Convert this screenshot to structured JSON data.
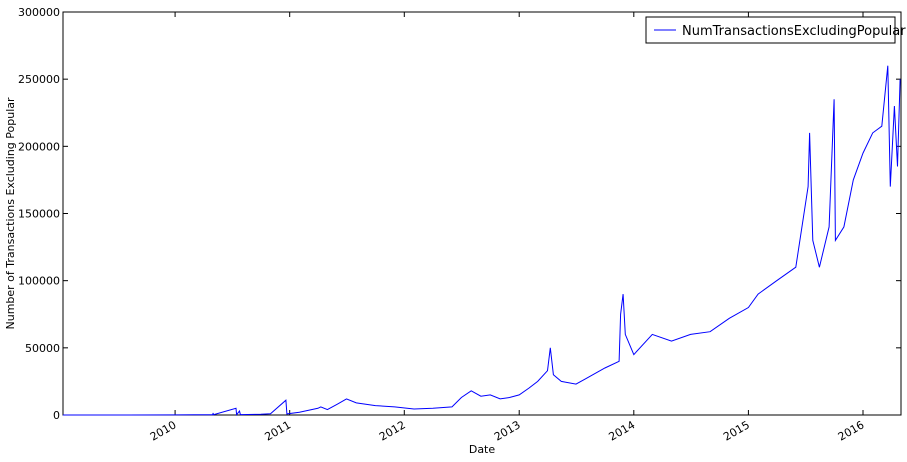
{
  "chart_data": {
    "type": "line",
    "title": "",
    "xlabel": "Date",
    "ylabel": "Number of Transactions Excluding Popular",
    "xlim": [
      "2009-01-09",
      "2016-05-01"
    ],
    "ylim": [
      0,
      300000
    ],
    "x_ticks": [
      "2010",
      "2011",
      "2012",
      "2013",
      "2014",
      "2015",
      "2016"
    ],
    "y_ticks": [
      "0",
      "50000",
      "100000",
      "150000",
      "200000",
      "250000",
      "300000"
    ],
    "grid": false,
    "legend_position": "top-right",
    "series": [
      {
        "name": "NumTransactionsExcludingPopular",
        "color": "#0000ff",
        "points": [
          [
            "2009-01-09",
            0
          ],
          [
            "2009-07-01",
            0
          ],
          [
            "2010-01-01",
            100
          ],
          [
            "2010-05-01",
            300
          ],
          [
            "2010-05-02",
            1500
          ],
          [
            "2010-05-03",
            200
          ],
          [
            "2010-07-14",
            5000
          ],
          [
            "2010-07-16",
            200
          ],
          [
            "2010-07-25",
            3000
          ],
          [
            "2010-07-28",
            300
          ],
          [
            "2010-10-01",
            500
          ],
          [
            "2010-11-01",
            900
          ],
          [
            "2010-12-20",
            11000
          ],
          [
            "2010-12-23",
            800
          ],
          [
            "2011-02-01",
            2000
          ],
          [
            "2011-04-01",
            5000
          ],
          [
            "2011-04-10",
            6000
          ],
          [
            "2011-05-01",
            4000
          ],
          [
            "2011-06-01",
            8000
          ],
          [
            "2011-07-01",
            12000
          ],
          [
            "2011-08-01",
            9000
          ],
          [
            "2011-10-01",
            7000
          ],
          [
            "2011-12-01",
            6000
          ],
          [
            "2012-02-01",
            4500
          ],
          [
            "2012-04-01",
            5000
          ],
          [
            "2012-06-01",
            6000
          ],
          [
            "2012-07-01",
            13000
          ],
          [
            "2012-08-01",
            18000
          ],
          [
            "2012-09-01",
            14000
          ],
          [
            "2012-10-01",
            15000
          ],
          [
            "2012-11-01",
            12000
          ],
          [
            "2012-12-01",
            13000
          ],
          [
            "2013-01-01",
            15000
          ],
          [
            "2013-02-01",
            20000
          ],
          [
            "2013-03-01",
            25000
          ],
          [
            "2013-04-01",
            33000
          ],
          [
            "2013-04-10",
            50000
          ],
          [
            "2013-04-20",
            30000
          ],
          [
            "2013-05-15",
            25000
          ],
          [
            "2013-07-01",
            23000
          ],
          [
            "2013-08-01",
            27000
          ],
          [
            "2013-10-01",
            35000
          ],
          [
            "2013-11-15",
            40000
          ],
          [
            "2013-11-20",
            75000
          ],
          [
            "2013-11-28",
            90000
          ],
          [
            "2013-12-05",
            60000
          ],
          [
            "2014-01-01",
            45000
          ],
          [
            "2014-03-01",
            60000
          ],
          [
            "2014-05-01",
            55000
          ],
          [
            "2014-07-01",
            60000
          ],
          [
            "2014-09-01",
            62000
          ],
          [
            "2014-11-01",
            72000
          ],
          [
            "2015-01-01",
            80000
          ],
          [
            "2015-02-01",
            90000
          ],
          [
            "2015-04-01",
            100000
          ],
          [
            "2015-06-01",
            110000
          ],
          [
            "2015-07-10",
            170000
          ],
          [
            "2015-07-15",
            210000
          ],
          [
            "2015-07-25",
            130000
          ],
          [
            "2015-08-15",
            110000
          ],
          [
            "2015-09-15",
            140000
          ],
          [
            "2015-10-01",
            235000
          ],
          [
            "2015-10-05",
            130000
          ],
          [
            "2015-11-01",
            140000
          ],
          [
            "2015-12-01",
            175000
          ],
          [
            "2016-01-01",
            195000
          ],
          [
            "2016-02-01",
            210000
          ],
          [
            "2016-03-01",
            215000
          ],
          [
            "2016-03-20",
            260000
          ],
          [
            "2016-03-28",
            170000
          ],
          [
            "2016-04-10",
            230000
          ],
          [
            "2016-04-20",
            185000
          ],
          [
            "2016-04-28",
            250000
          ]
        ]
      }
    ]
  }
}
